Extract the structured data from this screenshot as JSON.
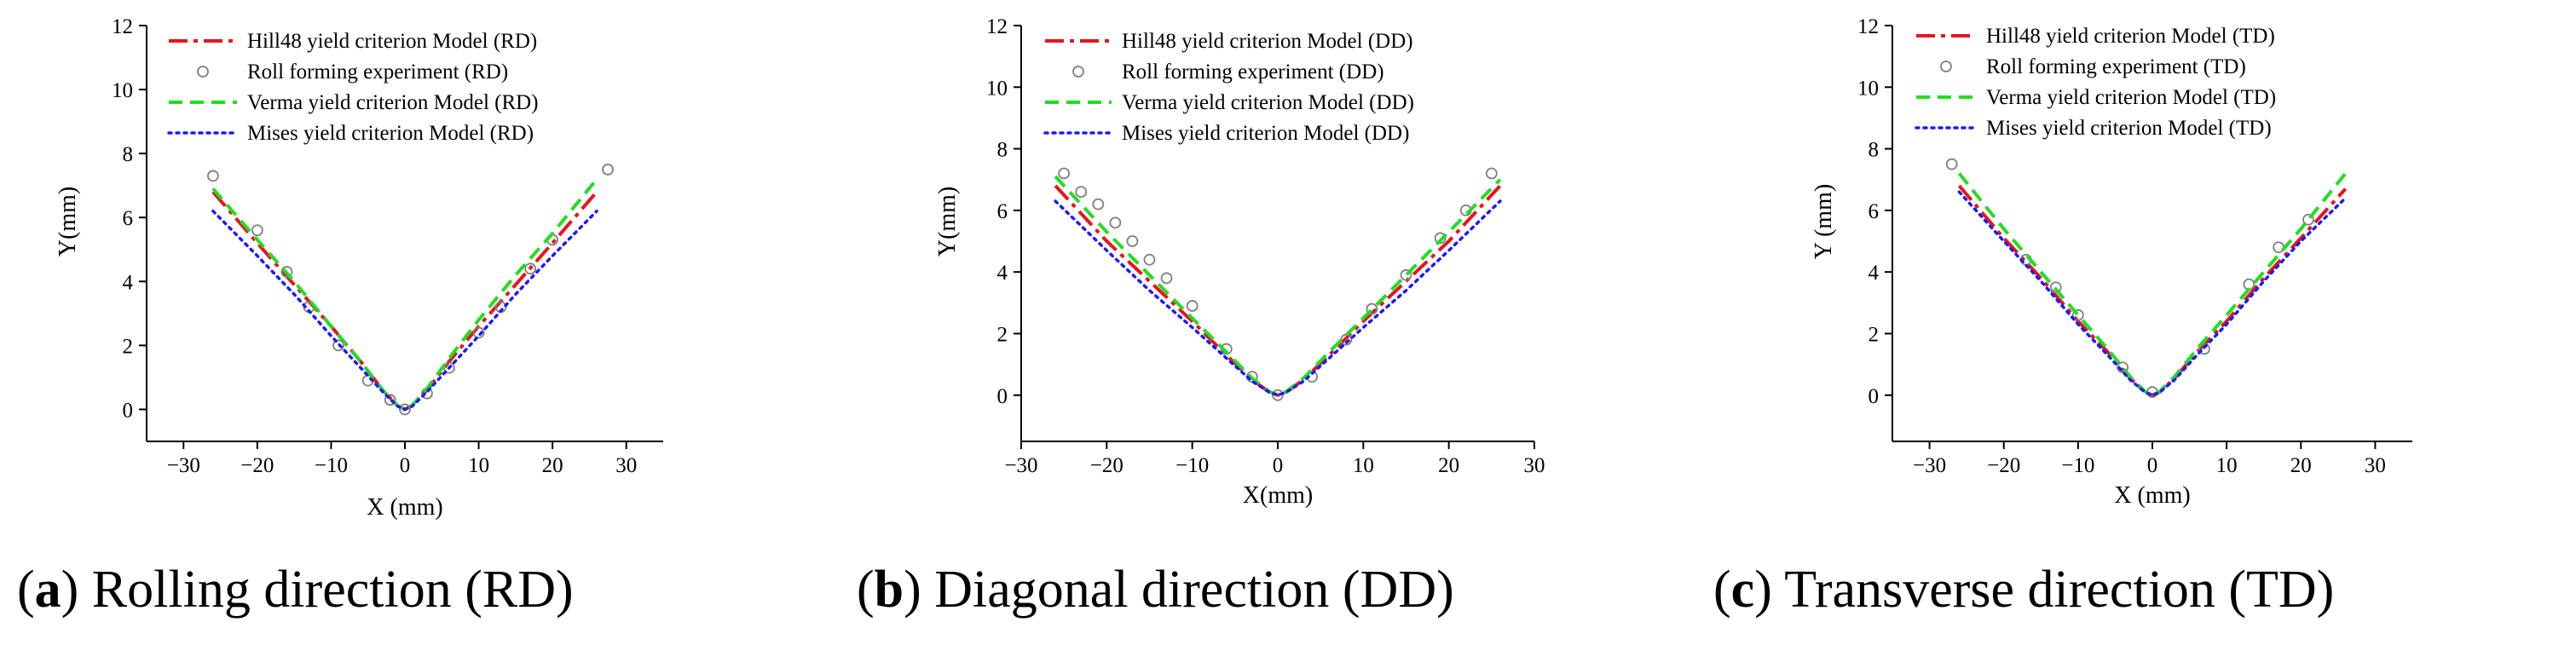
{
  "chart_data": [
    {
      "type": "line",
      "panel": "a",
      "caption_letter": "a",
      "caption_text": "Rolling direction (RD)",
      "xlabel": "X (mm)",
      "ylabel": "Y(mm)",
      "xlim": [
        -35,
        35
      ],
      "ylim": [
        -1,
        12
      ],
      "xticks": [
        -30,
        -20,
        -10,
        0,
        10,
        20,
        30
      ],
      "yticks": [
        0,
        2,
        4,
        6,
        8,
        10,
        12
      ],
      "xtick_labels": [
        "−30",
        "−20",
        "−10",
        "0",
        "10",
        "20",
        "30"
      ],
      "ytick_labels": [
        "0",
        "2",
        "4",
        "6",
        "8",
        "10",
        "12"
      ],
      "series": [
        {
          "name": "Hill48 yield criterion Model (RD)",
          "style": "dashdot",
          "color": "#e8141c",
          "x": [
            -26,
            -20,
            -15,
            -10,
            -6,
            -3,
            -1,
            0,
            1,
            3,
            6,
            10,
            15,
            20,
            26
          ],
          "y": [
            6.8,
            5.2,
            3.9,
            2.6,
            1.5,
            0.6,
            0.12,
            0,
            0.12,
            0.6,
            1.5,
            2.6,
            3.9,
            5.2,
            6.8
          ]
        },
        {
          "name": "Roll forming experiment (RD)",
          "style": "markers",
          "color": "#808080",
          "x": [
            -26,
            -20,
            -16,
            -13,
            -9,
            -5,
            -2,
            0,
            3,
            6,
            10,
            13,
            17,
            20,
            27.5
          ],
          "y": [
            7.3,
            5.6,
            4.3,
            3.2,
            2.0,
            0.9,
            0.3,
            0.0,
            0.5,
            1.3,
            2.4,
            3.2,
            4.4,
            5.3,
            7.5
          ]
        },
        {
          "name": "Verma yield criterion Model (RD)",
          "style": "dashed",
          "color": "#22dd22",
          "x": [
            -26,
            -20,
            -15,
            -10,
            -6,
            -3,
            -1,
            0,
            1,
            3,
            6,
            10,
            15,
            20,
            26
          ],
          "y": [
            6.9,
            5.3,
            4.0,
            2.6,
            1.5,
            0.6,
            0.12,
            0,
            0.13,
            0.65,
            1.6,
            2.8,
            4.2,
            5.5,
            7.2
          ]
        },
        {
          "name": "Mises yield criterion Model (RD)",
          "style": "dotted",
          "color": "#1a1aff",
          "x": [
            -26,
            -20,
            -15,
            -10,
            -6,
            -3,
            -1,
            0,
            1,
            3,
            6,
            10,
            15,
            20,
            26
          ],
          "y": [
            6.2,
            4.8,
            3.6,
            2.3,
            1.3,
            0.55,
            0.1,
            0,
            0.1,
            0.55,
            1.3,
            2.3,
            3.6,
            4.8,
            6.2
          ]
        }
      ]
    },
    {
      "type": "line",
      "panel": "b",
      "caption_letter": "b",
      "caption_text": "Diagonal direction (DD)",
      "xlabel": "X(mm)",
      "ylabel": "Y(mm)",
      "xlim": [
        -30,
        30
      ],
      "ylim": [
        -1.5,
        12
      ],
      "xticks": [
        -30,
        -20,
        -10,
        0,
        10,
        20,
        30
      ],
      "yticks": [
        0,
        2,
        4,
        6,
        8,
        10,
        12
      ],
      "xtick_labels": [
        "−30",
        "−20",
        "−10",
        "0",
        "10",
        "20",
        "30"
      ],
      "ytick_labels": [
        "0",
        "2",
        "4",
        "6",
        "8",
        "10",
        "12"
      ],
      "series": [
        {
          "name": "Hill48 yield criterion Model (DD)",
          "style": "dashdot",
          "color": "#e8141c",
          "x": [
            -26,
            -20,
            -15,
            -10,
            -6,
            -3,
            -1,
            0,
            1,
            3,
            6,
            10,
            15,
            20,
            26
          ],
          "y": [
            6.8,
            5.0,
            3.7,
            2.4,
            1.3,
            0.5,
            0.1,
            0,
            0.1,
            0.5,
            1.3,
            2.4,
            3.7,
            5.0,
            6.8
          ]
        },
        {
          "name": "Roll forming experiment (DD)",
          "style": "markers",
          "color": "#808080",
          "x": [
            -25,
            -23,
            -21,
            -19,
            -17,
            -15,
            -13,
            -10,
            -6,
            -3,
            0,
            4,
            8,
            11,
            15,
            19,
            22,
            25
          ],
          "y": [
            7.2,
            6.6,
            6.2,
            5.6,
            5.0,
            4.4,
            3.8,
            2.9,
            1.5,
            0.6,
            0,
            0.6,
            1.8,
            2.8,
            3.9,
            5.1,
            6.0,
            7.2
          ]
        },
        {
          "name": "Verma yield criterion Model (DD)",
          "style": "dashed",
          "color": "#22dd22",
          "x": [
            -26,
            -20,
            -15,
            -10,
            -6,
            -3,
            -1,
            0,
            1,
            3,
            6,
            10,
            15,
            20,
            26
          ],
          "y": [
            7.1,
            5.3,
            3.9,
            2.5,
            1.4,
            0.55,
            0.12,
            0,
            0.12,
            0.55,
            1.4,
            2.5,
            3.9,
            5.3,
            7.0
          ]
        },
        {
          "name": "Mises yield criterion Model (DD)",
          "style": "dotted",
          "color": "#1a1aff",
          "x": [
            -26,
            -20,
            -15,
            -10,
            -6,
            -3,
            -1,
            0,
            1,
            3,
            6,
            10,
            15,
            20,
            26
          ],
          "y": [
            6.3,
            4.7,
            3.4,
            2.2,
            1.2,
            0.45,
            0.1,
            0,
            0.1,
            0.45,
            1.2,
            2.2,
            3.4,
            4.7,
            6.3
          ]
        }
      ]
    },
    {
      "type": "line",
      "panel": "c",
      "caption_letter": "c",
      "caption_text": "Transverse direction (TD)",
      "xlabel": "X (mm)",
      "ylabel": "Y (mm)",
      "xlim": [
        -35,
        35
      ],
      "ylim": [
        -1.5,
        12
      ],
      "xticks": [
        -30,
        -20,
        -10,
        0,
        10,
        20,
        30
      ],
      "yticks": [
        0,
        2,
        4,
        6,
        8,
        10,
        12
      ],
      "xtick_labels": [
        "−30",
        "−20",
        "−10",
        "0",
        "10",
        "20",
        "30"
      ],
      "ytick_labels": [
        "0",
        "2",
        "4",
        "6",
        "8",
        "10",
        "12"
      ],
      "series": [
        {
          "name": "Hill48 yield criterion Model (TD)",
          "style": "dashdot",
          "color": "#e8141c",
          "x": [
            -26,
            -20,
            -15,
            -10,
            -6,
            -3,
            -1,
            0,
            1,
            3,
            6,
            10,
            15,
            20,
            26
          ],
          "y": [
            6.8,
            5.1,
            3.8,
            2.4,
            1.4,
            0.55,
            0.1,
            0,
            0.1,
            0.55,
            1.4,
            2.4,
            3.8,
            5.1,
            6.7
          ]
        },
        {
          "name": "Roll forming experiment (TD)",
          "style": "markers",
          "color": "#808080",
          "x": [
            -27,
            -17,
            -13,
            -10,
            -4,
            0,
            7,
            13,
            17,
            21
          ],
          "y": [
            7.5,
            4.4,
            3.5,
            2.6,
            0.9,
            0.1,
            1.5,
            3.6,
            4.8,
            5.7
          ]
        },
        {
          "name": "Verma yield criterion Model (TD)",
          "style": "dashed",
          "color": "#22dd22",
          "x": [
            -26,
            -20,
            -15,
            -10,
            -6,
            -3,
            -1,
            0,
            1,
            3,
            6,
            10,
            15,
            20,
            26
          ],
          "y": [
            7.2,
            5.4,
            4.0,
            2.6,
            1.5,
            0.6,
            0.12,
            0,
            0.12,
            0.6,
            1.5,
            2.6,
            4.0,
            5.4,
            7.2
          ]
        },
        {
          "name": "Mises yield criterion Model (TD)",
          "style": "dotted",
          "color": "#1a1aff",
          "x": [
            -26,
            -20,
            -15,
            -10,
            -6,
            -3,
            -1,
            0,
            1,
            3,
            6,
            10,
            15,
            20,
            26
          ],
          "y": [
            6.6,
            5.0,
            3.7,
            2.3,
            1.3,
            0.5,
            0.1,
            0,
            0.1,
            0.5,
            1.3,
            2.3,
            3.7,
            5.0,
            6.4
          ]
        }
      ]
    }
  ]
}
